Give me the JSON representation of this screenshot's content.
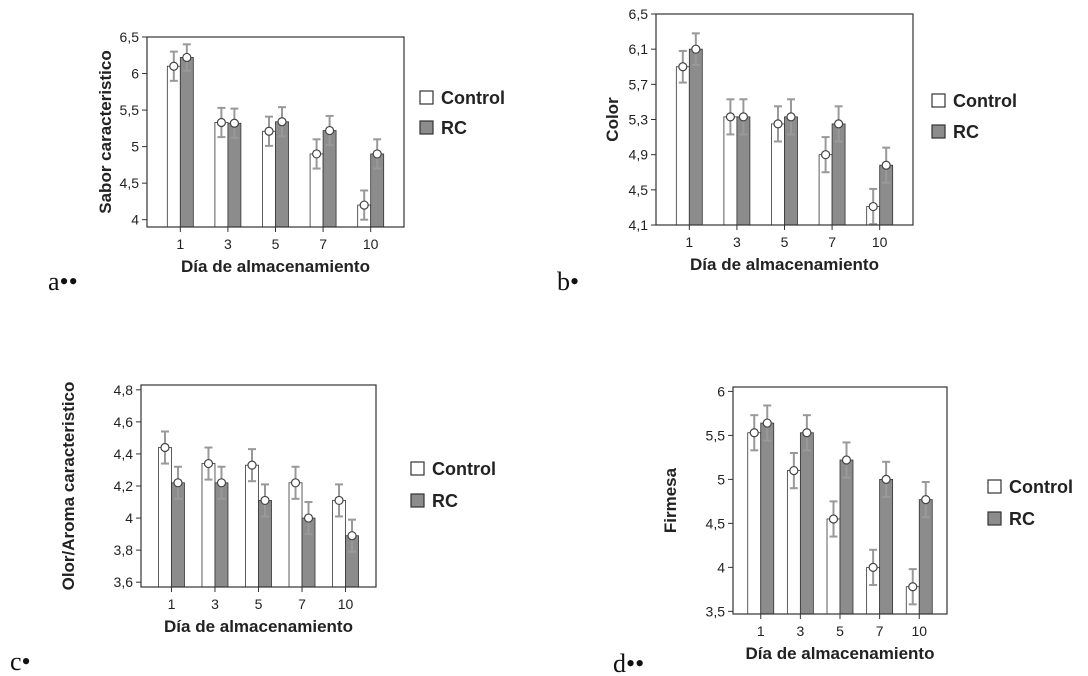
{
  "chart_data": [
    {
      "panel_label": "a••",
      "type": "bar",
      "categories": [
        "1",
        "3",
        "5",
        "7",
        "10"
      ],
      "xlabel": "Día de almacenamiento",
      "ylabel": "Sabor caracteristico",
      "ylim": [
        3.9,
        6.5
      ],
      "yticks": [
        "4",
        "4,5",
        "5",
        "5,5",
        "6",
        "6,5"
      ],
      "ytick_values": [
        4,
        4.5,
        5,
        5.5,
        6,
        6.5
      ],
      "series": [
        {
          "name": "Control",
          "color": "#ffffff",
          "values": [
            6.1,
            5.33,
            5.21,
            4.9,
            4.2
          ],
          "errors": [
            0.2,
            0.2,
            0.2,
            0.2,
            0.2
          ]
        },
        {
          "name": "RC",
          "color": "#8c8c8c",
          "values": [
            6.22,
            5.32,
            5.34,
            5.22,
            4.9
          ],
          "errors": [
            0.18,
            0.2,
            0.2,
            0.2,
            0.2
          ]
        }
      ]
    },
    {
      "panel_label": "b•",
      "type": "bar",
      "categories": [
        "1",
        "3",
        "5",
        "7",
        "10"
      ],
      "xlabel": "Día de almacenamiento",
      "ylabel": "Color",
      "ylim": [
        4.1,
        6.5
      ],
      "yticks": [
        "4,1",
        "4,5",
        "4,9",
        "5,3",
        "5,7",
        "6,1",
        "6,5"
      ],
      "ytick_values": [
        4.1,
        4.5,
        4.9,
        5.3,
        5.7,
        6.1,
        6.5
      ],
      "series": [
        {
          "name": "Control",
          "color": "#ffffff",
          "values": [
            5.9,
            5.33,
            5.25,
            4.9,
            4.31
          ],
          "errors": [
            0.18,
            0.2,
            0.2,
            0.2,
            0.2
          ]
        },
        {
          "name": "RC",
          "color": "#8c8c8c",
          "values": [
            6.1,
            5.33,
            5.33,
            5.25,
            4.78
          ],
          "errors": [
            0.18,
            0.2,
            0.2,
            0.2,
            0.2
          ]
        }
      ]
    },
    {
      "panel_label": "c•",
      "type": "bar",
      "categories": [
        "1",
        "3",
        "5",
        "7",
        "10"
      ],
      "xlabel": "Día de almacenamiento",
      "ylabel": "Olor/Aroma caracteristico",
      "ylim": [
        3.57,
        4.83
      ],
      "yticks": [
        "3,6",
        "3,8",
        "4",
        "4,2",
        "4,4",
        "4,6",
        "4,8"
      ],
      "ytick_values": [
        3.6,
        3.8,
        4.0,
        4.2,
        4.4,
        4.6,
        4.8
      ],
      "series": [
        {
          "name": "Control",
          "color": "#ffffff",
          "values": [
            4.44,
            4.34,
            4.33,
            4.22,
            4.11
          ],
          "errors": [
            0.1,
            0.1,
            0.1,
            0.1,
            0.1
          ]
        },
        {
          "name": "RC",
          "color": "#8c8c8c",
          "values": [
            4.22,
            4.22,
            4.11,
            4.0,
            3.89
          ],
          "errors": [
            0.1,
            0.1,
            0.1,
            0.1,
            0.1
          ]
        }
      ]
    },
    {
      "panel_label": "d••",
      "type": "bar",
      "categories": [
        "1",
        "3",
        "5",
        "7",
        "10"
      ],
      "xlabel": "Día de almacenamiento",
      "ylabel": "Firmesa",
      "ylim": [
        3.47,
        6.05
      ],
      "yticks": [
        "3,5",
        "4",
        "4,5",
        "5",
        "5,5",
        "6"
      ],
      "ytick_values": [
        3.5,
        4.0,
        4.5,
        5.0,
        5.5,
        6.0
      ],
      "series": [
        {
          "name": "Control",
          "color": "#ffffff",
          "values": [
            5.53,
            5.1,
            4.55,
            4.0,
            3.78
          ],
          "errors": [
            0.2,
            0.2,
            0.2,
            0.2,
            0.2
          ]
        },
        {
          "name": "RC",
          "color": "#8c8c8c",
          "values": [
            5.64,
            5.53,
            5.22,
            5.0,
            4.77
          ],
          "errors": [
            0.2,
            0.2,
            0.2,
            0.2,
            0.2
          ]
        }
      ]
    }
  ]
}
